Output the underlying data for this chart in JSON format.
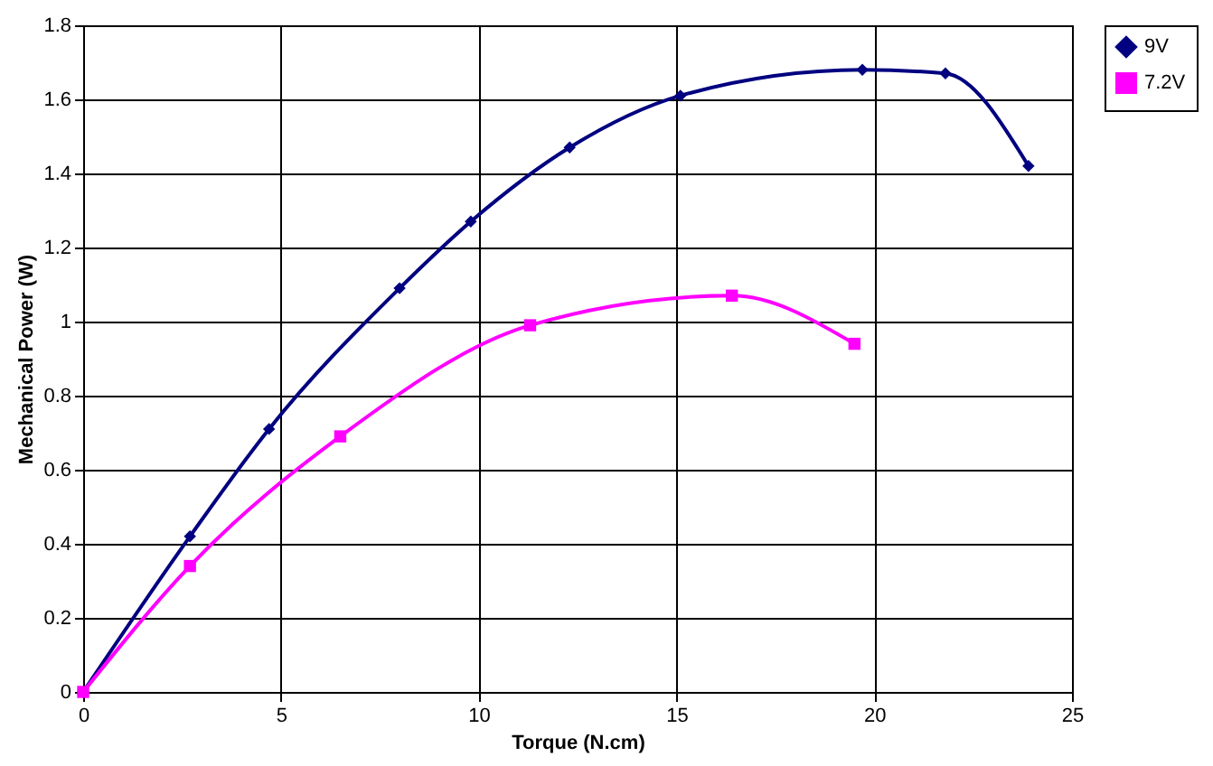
{
  "chart_data": {
    "type": "line",
    "xlabel": "Torque (N.cm)",
    "ylabel": "Mechanical Power (W)",
    "xlim": [
      0,
      25
    ],
    "xticks": [
      0,
      5,
      10,
      15,
      20,
      25
    ],
    "ylim": [
      0,
      1.8
    ],
    "yticks": [
      0,
      0.2,
      0.4,
      0.6,
      0.8,
      1,
      1.2,
      1.4,
      1.6,
      1.8
    ],
    "grid": true,
    "legend": "right",
    "line_style": "solid",
    "series": [
      {
        "name": "9V",
        "color": "#000080",
        "marker": "diamond",
        "x": [
          0,
          2.7,
          4.7,
          8.0,
          9.8,
          12.3,
          15.1,
          19.7,
          21.8,
          23.9
        ],
        "values": [
          0,
          0.42,
          0.71,
          1.09,
          1.27,
          1.47,
          1.61,
          1.68,
          1.67,
          1.42
        ]
      },
      {
        "name": "7.2V",
        "color": "#ff00ff",
        "marker": "square",
        "x": [
          0,
          2.7,
          6.5,
          11.3,
          16.4,
          19.5
        ],
        "values": [
          0,
          0.34,
          0.69,
          0.99,
          1.07,
          0.94
        ]
      }
    ]
  }
}
